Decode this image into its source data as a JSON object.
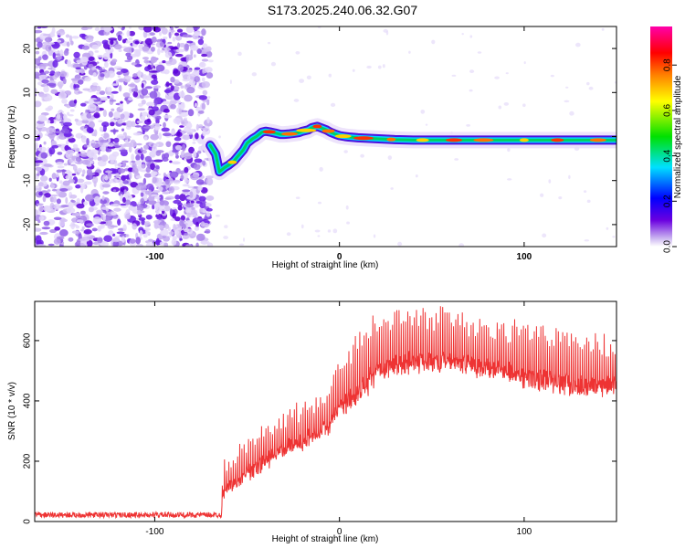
{
  "title": "S173.2025.240.06.32.G07",
  "chart_data": [
    {
      "type": "heatmap",
      "name": "spectrogram",
      "xlabel": "Height of straight line (km)",
      "ylabel": "Frequency (Hz)",
      "xlim": [
        -165,
        150
      ],
      "ylim": [
        -25,
        25
      ],
      "xticks": [
        -100,
        0,
        100
      ],
      "yticks": [
        -20,
        -10,
        0,
        10,
        20
      ],
      "noise_region_x": [
        -165,
        -70
      ],
      "colorbar": {
        "label": "Normalized spectral amplitude",
        "range": [
          0,
          0.97
        ],
        "ticks": [
          0.0,
          0.2,
          0.4,
          0.6,
          0.8
        ]
      },
      "ridge": {
        "x": [
          -70,
          -67,
          -65,
          -62,
          -60,
          -57,
          -55,
          -52,
          -50,
          -47,
          -45,
          -42,
          -40,
          -37,
          -35,
          -32,
          -30,
          -27,
          -25,
          -22,
          -20,
          -17,
          -15,
          -12,
          -10,
          -7,
          -5,
          -2,
          0,
          3,
          5,
          8,
          10,
          15,
          20,
          25,
          30,
          40,
          50,
          60,
          70,
          80,
          90,
          100,
          110,
          120,
          130,
          140,
          150
        ],
        "y": [
          -2,
          -4,
          -8,
          -7,
          -6.5,
          -5.5,
          -4.5,
          -3,
          -1.5,
          -0.5,
          0,
          1,
          1.2,
          1.0,
          0.8,
          0.5,
          0.5,
          0.6,
          0.7,
          0.9,
          1.2,
          1.5,
          2.0,
          2.3,
          2.0,
          1.5,
          1.0,
          0.5,
          0.2,
          0,
          -0.1,
          -0.2,
          -0.3,
          -0.4,
          -0.5,
          -0.6,
          -0.7,
          -0.8,
          -0.8,
          -0.8,
          -0.8,
          -0.8,
          -0.8,
          -0.8,
          -0.8,
          -0.8,
          -0.8,
          -0.8,
          -0.8
        ]
      }
    },
    {
      "type": "line",
      "name": "snr",
      "xlabel": "Height of straight line (km)",
      "ylabel": "SNR (10 * v/v)",
      "xlim": [
        -165,
        150
      ],
      "ylim": [
        0,
        730
      ],
      "xticks": [
        -100,
        0,
        100
      ],
      "yticks": [
        0,
        200,
        400,
        600
      ],
      "color": "#ee3333",
      "envelope": {
        "x": [
          -165,
          -64,
          -63,
          -55,
          -50,
          -40,
          -30,
          -20,
          -10,
          -5,
          -2,
          5,
          10,
          20,
          30,
          40,
          50,
          60,
          70,
          80,
          90,
          100,
          110,
          120,
          130,
          140,
          150
        ],
        "baseline": [
          20,
          20,
          100,
          130,
          160,
          200,
          240,
          260,
          300,
          320,
          370,
          400,
          430,
          490,
          520,
          530,
          530,
          530,
          520,
          510,
          500,
          480,
          470,
          460,
          450,
          450,
          450
        ],
        "peaks": [
          30,
          30,
          200,
          240,
          280,
          320,
          360,
          400,
          420,
          450,
          520,
          580,
          640,
          700,
          720,
          720,
          710,
          700,
          690,
          680,
          670,
          660,
          650,
          640,
          630,
          620,
          610
        ]
      }
    }
  ]
}
